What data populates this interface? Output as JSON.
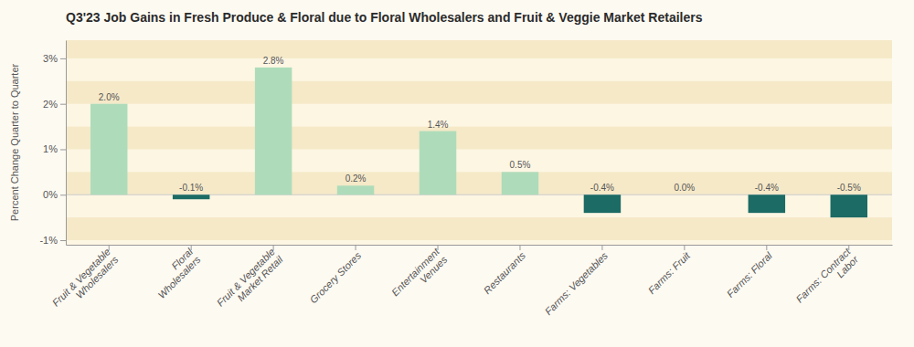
{
  "chart_data": {
    "type": "bar",
    "title": "Q3'23 Job Gains in Fresh Produce & Floral due to Floral Wholesalers and Fruit & Veggie Market Retailers",
    "y_label": "Percent Change Quarter to Quarter",
    "categories": [
      "Fruit & Vegetable\nWholesalers",
      "Floral\nWholesalers",
      "Fruit & Vegetable\nMarket Retail",
      "Grocery Stores",
      "Entertainment\nVenues",
      "Restaurants",
      "Farms: Vegetables",
      "Farms: Fruit",
      "Farms: Floral",
      "Farms: Contract\nLabor"
    ],
    "values": [
      2.0,
      -0.1,
      2.8,
      0.2,
      1.4,
      0.5,
      -0.4,
      0.0,
      -0.4,
      -0.5
    ],
    "value_labels": [
      "2.0%",
      "-0.1%",
      "2.8%",
      "0.2%",
      "1.4%",
      "0.5%",
      "-0.4%",
      "0.0%",
      "-0.4%",
      "-0.5%"
    ],
    "colors": [
      "#aedcba",
      "#1c6b65",
      "#aedcba",
      "#aedcba",
      "#aedcba",
      "#aedcba",
      "#1c6b65",
      "#aedcba",
      "#1c6b65",
      "#1c6b65"
    ],
    "data_labels": true,
    "ylim": [
      -1.1,
      3.4
    ],
    "yticks": [
      {
        "value": -1.0,
        "label": "-1%"
      },
      {
        "value": 0.0,
        "label": "0%"
      },
      {
        "value": 1.0,
        "label": "1%"
      },
      {
        "value": 2.0,
        "label": "2%"
      },
      {
        "value": 3.0,
        "label": "3%"
      }
    ],
    "grid": true
  }
}
